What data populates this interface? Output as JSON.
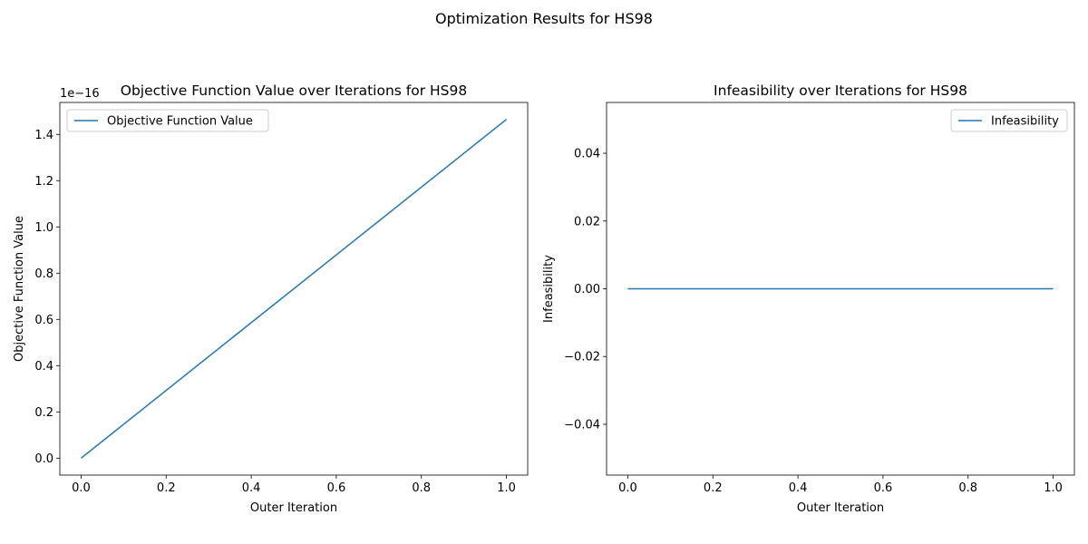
{
  "suptitle": "Optimization Results for HS98",
  "chart_data": [
    {
      "type": "line",
      "title": "Objective Function Value over Iterations for HS98",
      "xlabel": "Outer Iteration",
      "ylabel": "Objective Function Value",
      "offset_label": "1e−16",
      "x": [
        0,
        1
      ],
      "series": [
        {
          "name": "Objective Function Value",
          "values": [
            0.0,
            1.465
          ],
          "color": "#1f77b4"
        }
      ],
      "xlim": [
        -0.05,
        1.05
      ],
      "ylim": [
        -0.0733,
        1.5383
      ],
      "xticks": [
        0.0,
        0.2,
        0.4,
        0.6,
        0.8,
        1.0
      ],
      "xtick_labels": [
        "0.0",
        "0.2",
        "0.4",
        "0.6",
        "0.8",
        "1.0"
      ],
      "yticks": [
        0.0,
        0.2,
        0.4,
        0.6,
        0.8,
        1.0,
        1.2,
        1.4
      ],
      "ytick_labels": [
        "0.0",
        "0.2",
        "0.4",
        "0.6",
        "0.8",
        "1.0",
        "1.2",
        "1.4"
      ],
      "legend_loc": "upper left",
      "grid": false
    },
    {
      "type": "line",
      "title": "Infeasibility over Iterations for HS98",
      "xlabel": "Outer Iteration",
      "ylabel": "Infeasibility",
      "offset_label": "",
      "x": [
        0,
        1
      ],
      "series": [
        {
          "name": "Infeasibility",
          "values": [
            0.0,
            0.0
          ],
          "color": "#1f77b4"
        }
      ],
      "xlim": [
        -0.05,
        1.05
      ],
      "ylim": [
        -0.055,
        0.055
      ],
      "xticks": [
        0.0,
        0.2,
        0.4,
        0.6,
        0.8,
        1.0
      ],
      "xtick_labels": [
        "0.0",
        "0.2",
        "0.4",
        "0.6",
        "0.8",
        "1.0"
      ],
      "yticks": [
        -0.04,
        -0.02,
        0.0,
        0.02,
        0.04
      ],
      "ytick_labels": [
        "−0.04",
        "−0.02",
        "0.00",
        "0.02",
        "0.04"
      ],
      "legend_loc": "upper right",
      "grid": false
    }
  ]
}
